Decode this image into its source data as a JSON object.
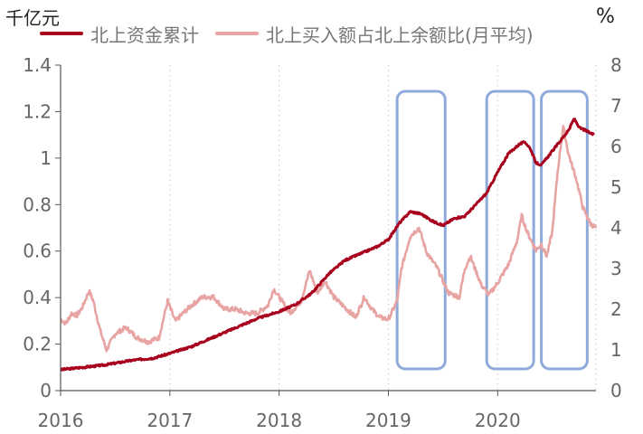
{
  "chart_data": {
    "type": "line",
    "left_unit": "千亿元",
    "right_unit": "%",
    "x_ticks": [
      "2016",
      "2017",
      "2018",
      "2019",
      "2020"
    ],
    "y_left": {
      "ticks": [
        "0",
        "0.2",
        "0.4",
        "0.6",
        "0.8",
        "1",
        "1.2",
        "1.4"
      ],
      "range": [
        0,
        1.4
      ]
    },
    "y_right": {
      "ticks": [
        "0",
        "1",
        "2",
        "3",
        "4",
        "5",
        "6",
        "7",
        "8"
      ],
      "range": [
        0,
        8
      ]
    },
    "x_range": [
      2016.0,
      2020.9
    ],
    "grid": "vertical dotted",
    "legend_position": "top",
    "colors": {
      "series1": "#a8001c",
      "series2": "#e8a4a3",
      "highlight_box": "#8eaadb"
    },
    "series": [
      {
        "name": "北上资金累计",
        "axis": "left",
        "points": [
          [
            2016.0,
            0.09
          ],
          [
            2016.2,
            0.1
          ],
          [
            2016.4,
            0.11
          ],
          [
            2016.65,
            0.13
          ],
          [
            2016.85,
            0.14
          ],
          [
            2017.0,
            0.16
          ],
          [
            2017.2,
            0.19
          ],
          [
            2017.4,
            0.23
          ],
          [
            2017.6,
            0.27
          ],
          [
            2017.8,
            0.31
          ],
          [
            2018.0,
            0.34
          ],
          [
            2018.15,
            0.37
          ],
          [
            2018.3,
            0.42
          ],
          [
            2018.45,
            0.5
          ],
          [
            2018.6,
            0.56
          ],
          [
            2018.75,
            0.59
          ],
          [
            2018.9,
            0.62
          ],
          [
            2019.0,
            0.65
          ],
          [
            2019.1,
            0.72
          ],
          [
            2019.2,
            0.77
          ],
          [
            2019.3,
            0.76
          ],
          [
            2019.4,
            0.73
          ],
          [
            2019.5,
            0.71
          ],
          [
            2019.6,
            0.74
          ],
          [
            2019.7,
            0.75
          ],
          [
            2019.8,
            0.8
          ],
          [
            2019.9,
            0.85
          ],
          [
            2020.0,
            0.94
          ],
          [
            2020.1,
            1.02
          ],
          [
            2020.2,
            1.06
          ],
          [
            2020.25,
            1.07
          ],
          [
            2020.3,
            1.04
          ],
          [
            2020.35,
            0.98
          ],
          [
            2020.4,
            0.97
          ],
          [
            2020.45,
            1.0
          ],
          [
            2020.55,
            1.06
          ],
          [
            2020.65,
            1.12
          ],
          [
            2020.7,
            1.17
          ],
          [
            2020.75,
            1.13
          ],
          [
            2020.8,
            1.12
          ],
          [
            2020.88,
            1.1
          ]
        ]
      },
      {
        "name": "北上买入额占北上余额比(月平均)",
        "axis": "right",
        "points": [
          [
            2016.0,
            1.75
          ],
          [
            2016.05,
            1.65
          ],
          [
            2016.1,
            1.9
          ],
          [
            2016.15,
            1.85
          ],
          [
            2016.2,
            2.05
          ],
          [
            2016.26,
            2.45
          ],
          [
            2016.3,
            2.2
          ],
          [
            2016.36,
            1.5
          ],
          [
            2016.42,
            1.0
          ],
          [
            2016.5,
            1.4
          ],
          [
            2016.6,
            1.55
          ],
          [
            2016.7,
            1.3
          ],
          [
            2016.8,
            1.2
          ],
          [
            2016.9,
            1.3
          ],
          [
            2016.98,
            2.2
          ],
          [
            2017.05,
            1.7
          ],
          [
            2017.12,
            1.9
          ],
          [
            2017.2,
            2.1
          ],
          [
            2017.3,
            2.3
          ],
          [
            2017.4,
            2.3
          ],
          [
            2017.5,
            2.0
          ],
          [
            2017.6,
            2.0
          ],
          [
            2017.7,
            1.9
          ],
          [
            2017.8,
            1.9
          ],
          [
            2017.9,
            2.1
          ],
          [
            2017.95,
            2.5
          ],
          [
            2018.0,
            2.3
          ],
          [
            2018.1,
            1.9
          ],
          [
            2018.2,
            2.2
          ],
          [
            2018.28,
            2.95
          ],
          [
            2018.35,
            2.4
          ],
          [
            2018.42,
            2.7
          ],
          [
            2018.5,
            2.3
          ],
          [
            2018.6,
            2.05
          ],
          [
            2018.7,
            1.8
          ],
          [
            2018.78,
            2.3
          ],
          [
            2018.85,
            2.0
          ],
          [
            2018.92,
            1.8
          ],
          [
            2019.0,
            1.75
          ],
          [
            2019.08,
            2.2
          ],
          [
            2019.12,
            3.0
          ],
          [
            2019.2,
            3.8
          ],
          [
            2019.28,
            4.0
          ],
          [
            2019.35,
            3.4
          ],
          [
            2019.45,
            3.0
          ],
          [
            2019.55,
            2.4
          ],
          [
            2019.65,
            2.3
          ],
          [
            2019.7,
            3.0
          ],
          [
            2019.75,
            3.3
          ],
          [
            2019.85,
            2.6
          ],
          [
            2019.92,
            2.35
          ],
          [
            2020.0,
            2.65
          ],
          [
            2020.1,
            3.1
          ],
          [
            2020.18,
            3.7
          ],
          [
            2020.22,
            4.3
          ],
          [
            2020.27,
            3.9
          ],
          [
            2020.35,
            3.45
          ],
          [
            2020.4,
            3.6
          ],
          [
            2020.45,
            3.3
          ],
          [
            2020.5,
            3.9
          ],
          [
            2020.55,
            5.4
          ],
          [
            2020.6,
            6.5
          ],
          [
            2020.65,
            5.8
          ],
          [
            2020.72,
            5.2
          ],
          [
            2020.78,
            4.5
          ],
          [
            2020.85,
            4.1
          ],
          [
            2020.9,
            4.0
          ]
        ]
      }
    ],
    "highlight_ranges": [
      [
        2019.08,
        2019.52
      ],
      [
        2019.9,
        2020.33
      ],
      [
        2020.4,
        2020.82
      ]
    ]
  }
}
